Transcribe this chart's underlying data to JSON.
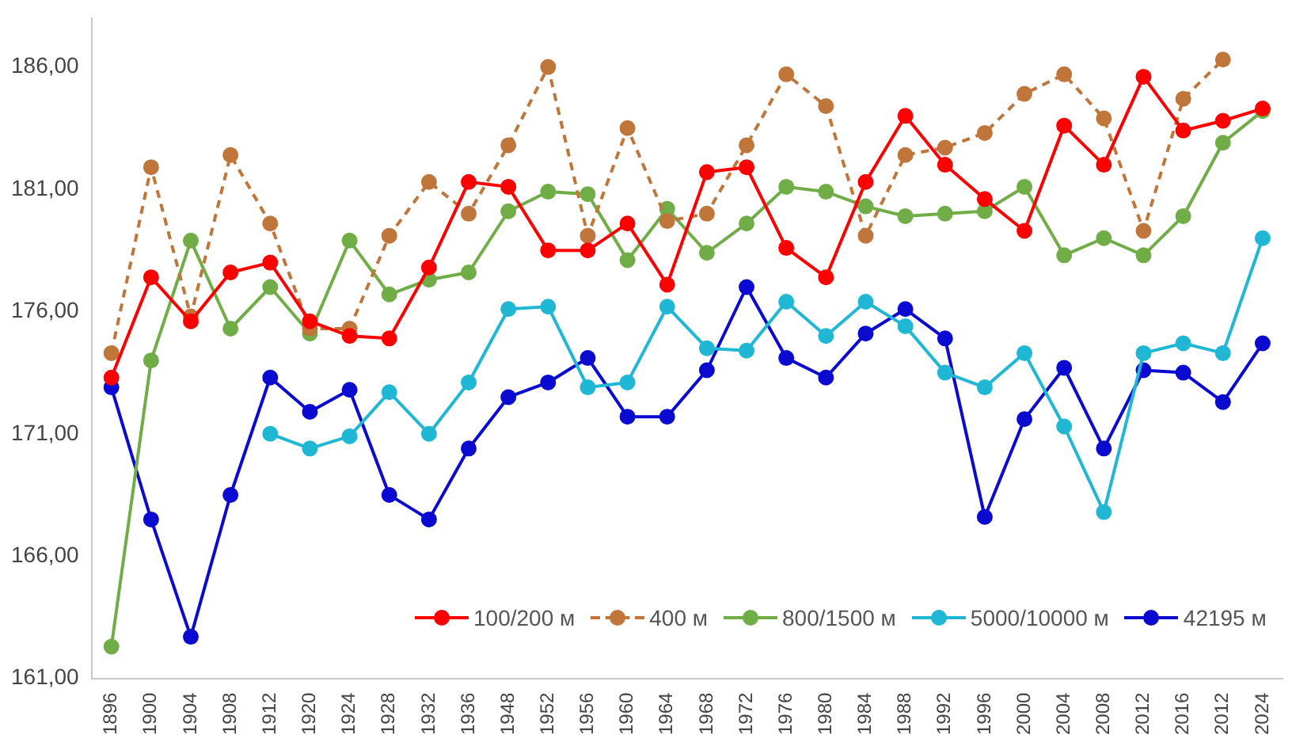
{
  "chart_data": {
    "type": "line",
    "categories": [
      "1896",
      "1900",
      "1904",
      "1908",
      "1912",
      "1920",
      "1924",
      "1928",
      "1932",
      "1936",
      "1948",
      "1952",
      "1956",
      "1960",
      "1964",
      "1968",
      "1972",
      "1976",
      "1980",
      "1984",
      "1988",
      "1992",
      "1996",
      "2000",
      "2004",
      "2008",
      "2012",
      "2016",
      "2012",
      "2024"
    ],
    "series": [
      {
        "name": "100/200 м",
        "color": "#ff0000",
        "line_style": "solid",
        "values": [
          173.3,
          177.4,
          175.6,
          177.6,
          178.0,
          175.6,
          175.0,
          174.9,
          177.8,
          181.3,
          181.1,
          178.5,
          178.5,
          179.6,
          177.1,
          181.7,
          181.9,
          178.6,
          177.4,
          181.3,
          184.0,
          182.0,
          180.6,
          179.3,
          183.6,
          182.0,
          185.6,
          183.4,
          183.8,
          184.3
        ]
      },
      {
        "name": "400 м",
        "color": "#c0763a",
        "line_style": "dashed",
        "values": [
          174.3,
          181.9,
          175.8,
          182.4,
          179.6,
          175.3,
          175.3,
          179.1,
          181.3,
          180.0,
          182.8,
          186.0,
          179.1,
          183.5,
          179.7,
          180.0,
          182.8,
          185.7,
          184.4,
          179.1,
          182.4,
          182.7,
          183.3,
          184.9,
          185.7,
          183.9,
          179.3,
          184.7,
          186.3,
          null
        ]
      },
      {
        "name": "800/1500 м",
        "color": "#70ad47",
        "line_style": "solid",
        "values": [
          162.3,
          174.0,
          178.9,
          175.3,
          177.0,
          175.1,
          178.9,
          176.7,
          177.3,
          177.6,
          180.1,
          180.9,
          180.8,
          178.1,
          180.2,
          178.4,
          179.6,
          181.1,
          180.9,
          180.3,
          179.9,
          180.0,
          180.1,
          181.1,
          178.3,
          179.0,
          178.3,
          179.9,
          182.9,
          184.2
        ]
      },
      {
        "name": "5000/10000 м",
        "color": "#1fb7d4",
        "line_style": "solid",
        "values": [
          null,
          null,
          null,
          null,
          171.0,
          170.4,
          170.9,
          172.7,
          171.0,
          173.1,
          176.1,
          176.2,
          172.9,
          173.1,
          176.2,
          174.5,
          174.4,
          176.4,
          175.0,
          176.4,
          175.4,
          173.5,
          172.9,
          174.3,
          171.3,
          167.8,
          174.3,
          174.7,
          174.3,
          179.0
        ]
      },
      {
        "name": "42195 м",
        "color": "#0a0ad0",
        "line_style": "solid",
        "values": [
          172.9,
          167.5,
          162.7,
          168.5,
          173.3,
          171.9,
          172.8,
          168.5,
          167.5,
          170.4,
          172.5,
          173.1,
          174.1,
          171.7,
          171.7,
          173.6,
          177.0,
          174.1,
          173.3,
          175.1,
          176.1,
          174.9,
          167.6,
          171.6,
          173.7,
          170.4,
          173.6,
          173.5,
          172.3,
          174.7
        ]
      }
    ],
    "ylim": [
      161,
      188
    ],
    "yticks": [
      {
        "value": 161,
        "label": "161,00"
      },
      {
        "value": 166,
        "label": "166,00"
      },
      {
        "value": 171,
        "label": "171,00"
      },
      {
        "value": 176,
        "label": "176,00"
      },
      {
        "value": 181,
        "label": "181,00"
      },
      {
        "value": 186,
        "label": "186,00"
      }
    ],
    "grid": false,
    "legend": "bottom right",
    "marker": "circle"
  }
}
